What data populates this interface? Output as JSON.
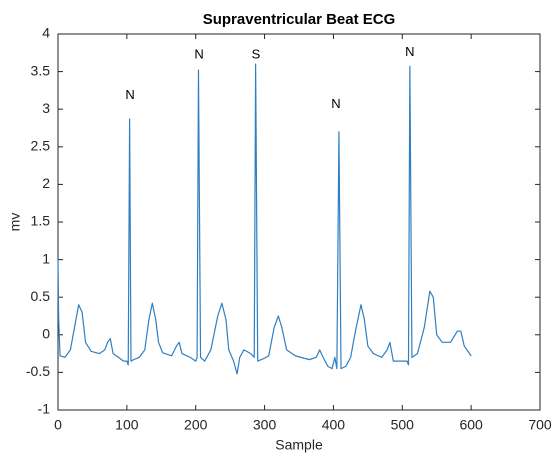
{
  "chart_data": {
    "type": "line",
    "title": "Supraventricular Beat ECG",
    "xlabel": "Sample",
    "ylabel": "mv",
    "color": "#2f7fc1",
    "x": [
      0,
      1,
      3,
      10,
      18,
      24,
      30,
      35,
      40,
      48,
      60,
      68,
      72,
      76,
      80,
      88,
      95,
      100,
      102,
      104,
      106,
      110,
      118,
      126,
      132,
      137,
      142,
      146,
      152,
      165,
      172,
      176,
      180,
      192,
      200,
      202,
      204,
      207,
      213,
      222,
      232,
      238,
      244,
      248,
      255,
      260,
      264,
      270,
      280,
      285,
      287,
      290,
      298,
      306,
      314,
      320,
      325,
      332,
      345,
      365,
      375,
      380,
      385,
      392,
      398,
      402,
      405,
      408,
      411,
      418,
      425,
      432,
      440,
      445,
      450,
      458,
      470,
      478,
      482,
      487,
      500,
      507,
      509,
      511,
      514,
      522,
      532,
      540,
      545,
      550,
      558,
      570,
      580,
      585,
      590,
      600
    ],
    "values": [
      1.0,
      0.2,
      -0.28,
      -0.3,
      -0.2,
      0.1,
      0.4,
      0.3,
      -0.1,
      -0.22,
      -0.25,
      -0.2,
      -0.1,
      -0.05,
      -0.25,
      -0.3,
      -0.35,
      -0.35,
      -0.4,
      2.87,
      -0.35,
      -0.33,
      -0.3,
      -0.2,
      0.2,
      0.42,
      0.2,
      -0.1,
      -0.24,
      -0.28,
      -0.15,
      -0.1,
      -0.25,
      -0.3,
      -0.35,
      -0.3,
      3.52,
      -0.3,
      -0.35,
      -0.2,
      0.25,
      0.42,
      0.2,
      -0.2,
      -0.35,
      -0.52,
      -0.3,
      -0.2,
      -0.25,
      -0.3,
      3.6,
      -0.35,
      -0.32,
      -0.28,
      0.1,
      0.25,
      0.1,
      -0.2,
      -0.28,
      -0.33,
      -0.3,
      -0.2,
      -0.3,
      -0.42,
      -0.45,
      -0.3,
      -0.45,
      2.7,
      -0.45,
      -0.42,
      -0.3,
      0.05,
      0.4,
      0.2,
      -0.15,
      -0.25,
      -0.3,
      -0.2,
      -0.1,
      -0.35,
      -0.35,
      -0.35,
      -0.4,
      3.57,
      -0.3,
      -0.25,
      0.1,
      0.58,
      0.5,
      0,
      -0.1,
      -0.1,
      0.05,
      0.05,
      -0.15,
      -0.28
    ],
    "xlim": [
      0,
      700
    ],
    "xticks": [
      0,
      100,
      200,
      300,
      400,
      500,
      600,
      700
    ],
    "ylim": [
      -1,
      4
    ],
    "yticks": [
      -1,
      -0.5,
      0,
      0.5,
      1,
      1.5,
      2,
      2.5,
      3,
      3.5,
      4
    ],
    "annotations": [
      {
        "text": "N",
        "x": 104.6,
        "y": 3.18
      },
      {
        "text": "N",
        "x": 204.8,
        "y": 3.72
      },
      {
        "text": "S",
        "x": 287.5,
        "y": 3.72
      },
      {
        "text": "N",
        "x": 403.7,
        "y": 3.06
      },
      {
        "text": "N",
        "x": 511,
        "y": 3.75
      }
    ]
  }
}
